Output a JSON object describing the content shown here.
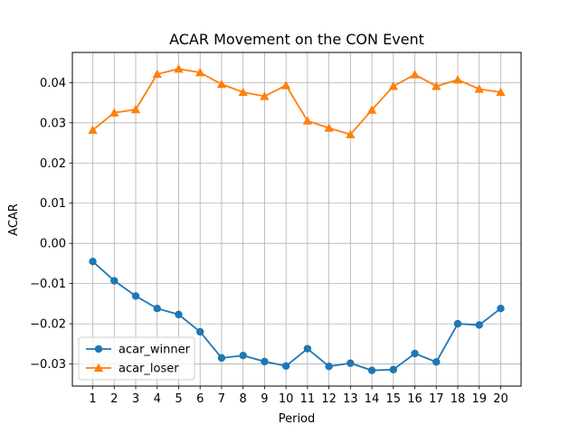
{
  "chart_data": {
    "type": "line",
    "title": "ACAR Movement on the CON Event",
    "xlabel": "Period",
    "ylabel": "ACAR",
    "x": [
      1,
      2,
      3,
      4,
      5,
      6,
      7,
      8,
      9,
      10,
      11,
      12,
      13,
      14,
      15,
      16,
      17,
      18,
      19,
      20
    ],
    "x_ticks": [
      "1",
      "2",
      "3",
      "4",
      "5",
      "6",
      "7",
      "8",
      "9",
      "10",
      "11",
      "12",
      "13",
      "14",
      "15",
      "16",
      "17",
      "18",
      "19",
      "20"
    ],
    "xlim": [
      0.05,
      20.95
    ],
    "ylim": [
      -0.0355,
      0.0475
    ],
    "y_ticks": [
      -0.03,
      -0.02,
      -0.01,
      0.0,
      0.01,
      0.02,
      0.03,
      0.04
    ],
    "y_tick_labels": [
      "−0.03",
      "−0.02",
      "−0.01",
      "0.00",
      "0.01",
      "0.02",
      "0.03",
      "0.04"
    ],
    "grid": true,
    "legend_position": "lower-left",
    "series": [
      {
        "name": "acar_winner",
        "color": "#1f77b4",
        "marker": "circle",
        "values": [
          -0.0045,
          -0.0093,
          -0.0131,
          -0.0162,
          -0.0177,
          -0.022,
          -0.0285,
          -0.0279,
          -0.0294,
          -0.0305,
          -0.0262,
          -0.0306,
          -0.0298,
          -0.0316,
          -0.0314,
          -0.0274,
          -0.0295,
          -0.02,
          -0.0203,
          -0.0162
        ]
      },
      {
        "name": "acar_loser",
        "color": "#ff7f0e",
        "marker": "triangle",
        "values": [
          0.0282,
          0.0325,
          0.0333,
          0.0421,
          0.0434,
          0.0425,
          0.0396,
          0.0376,
          0.0366,
          0.0393,
          0.0305,
          0.0287,
          0.0271,
          0.0332,
          0.0391,
          0.042,
          0.0391,
          0.0407,
          0.0384,
          0.0376
        ]
      }
    ]
  }
}
